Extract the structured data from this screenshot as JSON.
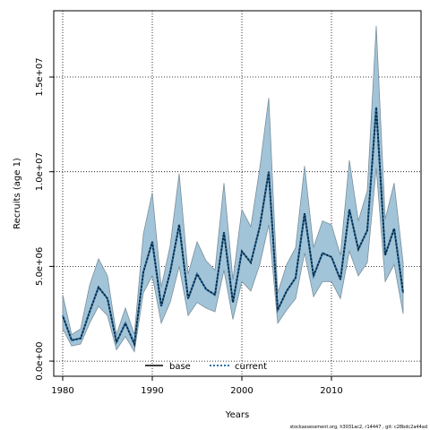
{
  "chart_data": {
    "type": "line",
    "title": "",
    "xlabel": "Years",
    "ylabel": "Recruits (age 1)",
    "xlim": [
      1979,
      2020
    ],
    "ylim": [
      -800000,
      18500000
    ],
    "grid": true,
    "x_ticks": [
      1980,
      1990,
      2000,
      2010
    ],
    "x_tick_labels": [
      "1980",
      "1990",
      "2000",
      "2010"
    ],
    "y_ticks": [
      0,
      5000000,
      10000000,
      15000000
    ],
    "y_tick_labels": [
      "0.0e+00",
      "5.0e+06",
      "1.0e+07",
      "1.5e+07"
    ],
    "x": [
      1980,
      1981,
      1982,
      1983,
      1984,
      1985,
      1986,
      1987,
      1988,
      1989,
      1990,
      1991,
      1992,
      1993,
      1994,
      1995,
      1996,
      1997,
      1998,
      1999,
      2000,
      2001,
      2002,
      2003,
      2004,
      2005,
      2006,
      2007,
      2008,
      2009,
      2010,
      2011,
      2012,
      2013,
      2014,
      2015,
      2016,
      2017,
      2018
    ],
    "series": [
      {
        "name": "base",
        "style": "solid",
        "color": "#000000",
        "values": [
          2400000,
          1100000,
          1200000,
          2600000,
          3900000,
          3300000,
          1000000,
          2000000,
          900000,
          4700000,
          6300000,
          2900000,
          4700000,
          7200000,
          3300000,
          4600000,
          3800000,
          3500000,
          6800000,
          3100000,
          5800000,
          5200000,
          7100000,
          10000000,
          2700000,
          3700000,
          4400000,
          7800000,
          4500000,
          5700000,
          5500000,
          4300000,
          8000000,
          5900000,
          6900000,
          13400000,
          5600000,
          7000000,
          3600000
        ]
      },
      {
        "name": "current",
        "style": "dotted",
        "color": "#2c6fa6",
        "values": [
          2400000,
          1100000,
          1200000,
          2600000,
          3900000,
          3300000,
          1000000,
          2000000,
          900000,
          4700000,
          6300000,
          2900000,
          4700000,
          7200000,
          3300000,
          4600000,
          3800000,
          3500000,
          6800000,
          3100000,
          5800000,
          5200000,
          7100000,
          10000000,
          2700000,
          3700000,
          4400000,
          7800000,
          4500000,
          5700000,
          5500000,
          4300000,
          8000000,
          5900000,
          6900000,
          13400000,
          5600000,
          7000000,
          3600000
        ]
      }
    ],
    "interval": {
      "color": "#7fb0cc",
      "lower": [
        1700000,
        800000,
        900000,
        2000000,
        2900000,
        2400000,
        600000,
        1300000,
        500000,
        3600000,
        4500000,
        2000000,
        3100000,
        5000000,
        2400000,
        3100000,
        2800000,
        2600000,
        4800000,
        2200000,
        4200000,
        3700000,
        5100000,
        7200000,
        2000000,
        2700000,
        3300000,
        5700000,
        3400000,
        4200000,
        4200000,
        3300000,
        5800000,
        4500000,
        5200000,
        10200000,
        4200000,
        5100000,
        2500000
      ],
      "upper": [
        3500000,
        1400000,
        1700000,
        4000000,
        5400000,
        4500000,
        1400000,
        2800000,
        1400000,
        6700000,
        8900000,
        3900000,
        6100000,
        9900000,
        4600000,
        6300000,
        5300000,
        4800000,
        9400000,
        4300000,
        8000000,
        7100000,
        10200000,
        13900000,
        3600000,
        5100000,
        6000000,
        10300000,
        6000000,
        7400000,
        7200000,
        5600000,
        10600000,
        7400000,
        9000000,
        17700000,
        7500000,
        9400000,
        5200000
      ]
    },
    "legend": {
      "placement": "bottom-center",
      "entries": [
        {
          "label": "base",
          "style": "solid",
          "color": "#000000"
        },
        {
          "label": "current",
          "style": "dotted",
          "color": "#2c6fa6"
        }
      ]
    }
  },
  "footnote": "stockassessment.org, h3031ac2, r14447 , git: c28bdc2a44ad"
}
